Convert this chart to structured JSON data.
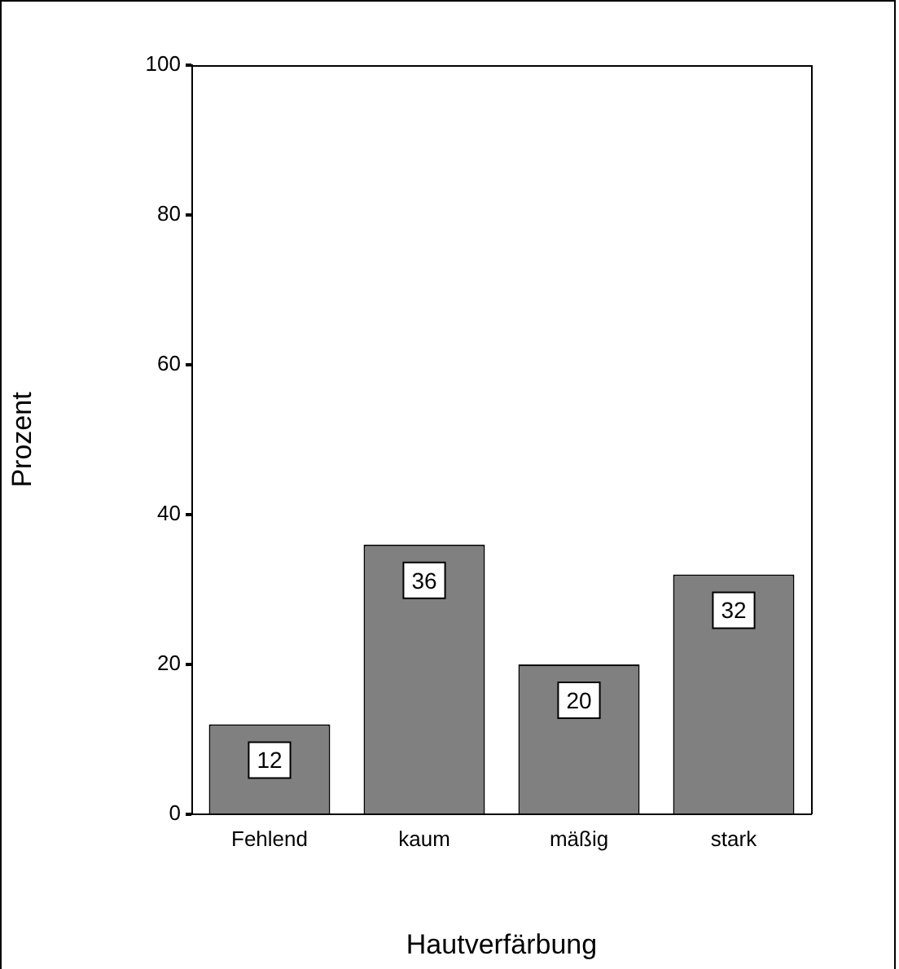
{
  "chart_data": {
    "type": "bar",
    "xlabel": "Hautverfärbung",
    "ylabel": "Prozent",
    "categories": [
      "Fehlend",
      "kaum",
      "mäßig",
      "stark"
    ],
    "values": [
      12,
      36,
      20,
      32
    ],
    "color": "#808080",
    "ylim": [
      0,
      100
    ],
    "yticks": [
      0,
      20,
      40,
      60,
      80,
      100
    ],
    "grid": false,
    "legend": false,
    "data_labels": true
  }
}
